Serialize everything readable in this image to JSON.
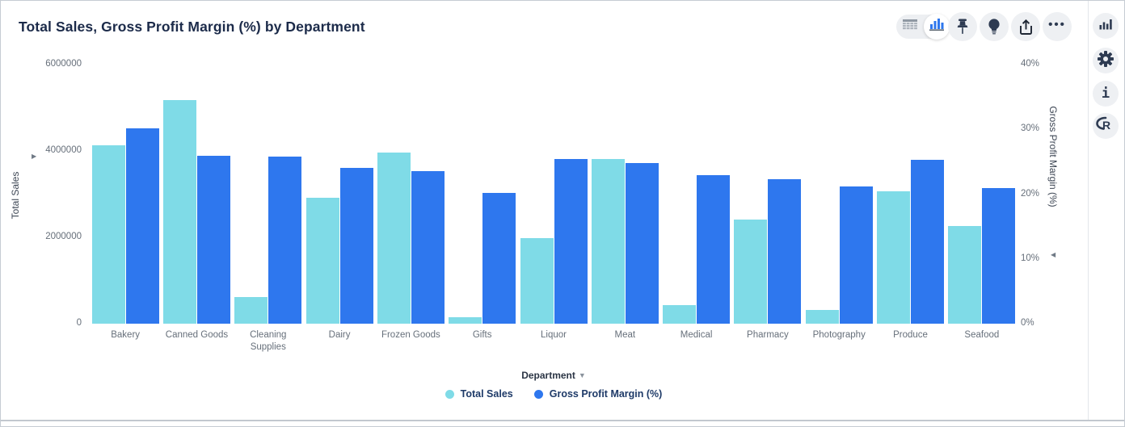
{
  "header": {
    "title": "Total Sales, Gross Profit Margin (%) by Department",
    "toolbar": {
      "table_view_icon": "table-grid",
      "chart_view_icon": "bar-chart",
      "pin_icon": "pushpin",
      "insights_icon": "lightbulb",
      "export_icon": "share-export",
      "more_icon": "ellipsis",
      "ellipsis_glyph": "•••"
    }
  },
  "sidebar": {
    "items": [
      {
        "icon": "chart-type",
        "glyph": ""
      },
      {
        "icon": "settings-gear",
        "glyph": ""
      },
      {
        "icon": "info",
        "glyph": "i"
      },
      {
        "icon": "r-logo",
        "glyph": "R"
      }
    ]
  },
  "chart_data": {
    "type": "bar",
    "subtype": "dual-axis-grouped",
    "title": "Total Sales, Gross Profit Margin (%) by Department",
    "xlabel": "Department",
    "xlabel_dropdown_glyph": "▼",
    "grid": false,
    "legend_position": "bottom",
    "categories": [
      "Bakery",
      "Canned Goods",
      "Cleaning Supplies",
      "Dairy",
      "Frozen Goods",
      "Gifts",
      "Liquor",
      "Meat",
      "Medical",
      "Pharmacy",
      "Photography",
      "Produce",
      "Seafood"
    ],
    "series": [
      {
        "name": "Total Sales",
        "axis": "left",
        "color": "#7FDBE7",
        "values": [
          4140000,
          5170000,
          620000,
          2920000,
          3970000,
          155000,
          1985000,
          3810000,
          435000,
          2410000,
          325000,
          3070000,
          2260000
        ]
      },
      {
        "name": "Gross Profit Margin (%)",
        "axis": "right",
        "color": "#2E77EE",
        "values": [
          30.2,
          25.9,
          25.8,
          24.1,
          23.6,
          20.2,
          25.4,
          24.8,
          22.9,
          22.3,
          21.2,
          25.3,
          20.9
        ]
      }
    ],
    "left_axis": {
      "label": "Total Sales",
      "arrow_glyph": "▶",
      "min": 0,
      "max": 6000000,
      "ticks": [
        {
          "value": 0,
          "label": "0"
        },
        {
          "value": 2000000,
          "label": "2000000"
        },
        {
          "value": 4000000,
          "label": "4000000"
        },
        {
          "value": 6000000,
          "label": "6000000"
        }
      ]
    },
    "right_axis": {
      "label": "Gross Profit Margin (%)",
      "arrow_glyph": "◀",
      "min": 0,
      "max": 40,
      "ticks": [
        {
          "value": 0,
          "label": "0%"
        },
        {
          "value": 10,
          "label": "10%"
        },
        {
          "value": 20,
          "label": "20%"
        },
        {
          "value": 30,
          "label": "30%"
        },
        {
          "value": 40,
          "label": "40%"
        }
      ]
    },
    "legend": [
      {
        "label": "Total Sales",
        "color": "#7FDBE7"
      },
      {
        "label": "Gross Profit Margin (%)",
        "color": "#2E77EE"
      }
    ]
  }
}
